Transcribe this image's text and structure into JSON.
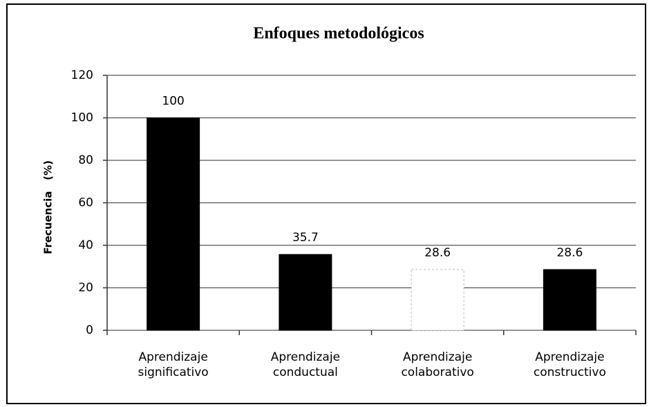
{
  "chart_data": {
    "type": "bar",
    "title": "Enfoques metodológicos",
    "y_label": "Frecuencia   (%)",
    "categories": [
      "Aprendizaje significativo",
      "Aprendizaje conductual",
      "Aprendizaje colaborativo",
      "Aprendizaje constructivo"
    ],
    "values": [
      100,
      35.7,
      28.6,
      28.6
    ],
    "colors": [
      "#000000",
      "#000000",
      "#ffffff",
      "#000000"
    ],
    "ylim": [
      0,
      120
    ],
    "yticks": [
      0,
      20,
      40,
      60,
      80,
      100,
      120
    ],
    "grid": true
  }
}
